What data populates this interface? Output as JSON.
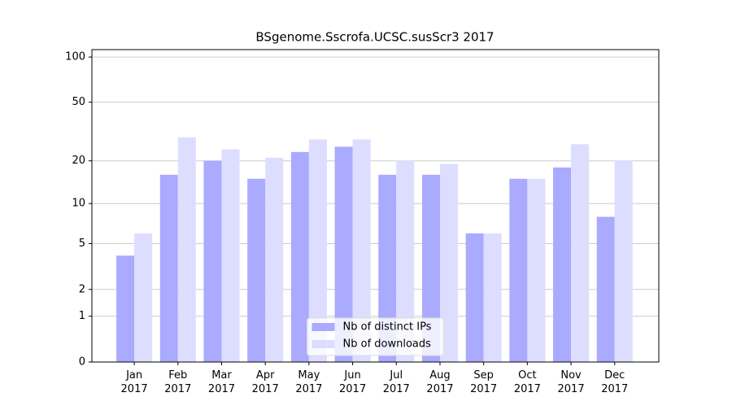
{
  "chart_data": {
    "type": "bar",
    "title": "BSgenome.Sscrofa.UCSC.susScr3 2017",
    "categories": [
      "Jan\n2017",
      "Feb\n2017",
      "Mar\n2017",
      "Apr\n2017",
      "May\n2017",
      "Jun\n2017",
      "Jul\n2017",
      "Aug\n2017",
      "Sep\n2017",
      "Oct\n2017",
      "Nov\n2017",
      "Dec\n2017"
    ],
    "series": [
      {
        "name": "Nb of distinct IPs",
        "color": "#aaaaff",
        "values": [
          4,
          16,
          20,
          15,
          23,
          25,
          16,
          16,
          6,
          15,
          18,
          8
        ]
      },
      {
        "name": "Nb of downloads",
        "color": "#ddddff",
        "values": [
          6,
          29,
          24,
          21,
          28,
          28,
          20,
          19,
          6,
          15,
          26,
          20
        ]
      }
    ],
    "yscale": "log1p",
    "ylim": [
      0,
      112
    ],
    "yticks": [
      0,
      1,
      2,
      5,
      10,
      20,
      50,
      100
    ],
    "grid": true,
    "legend": "lower center"
  }
}
